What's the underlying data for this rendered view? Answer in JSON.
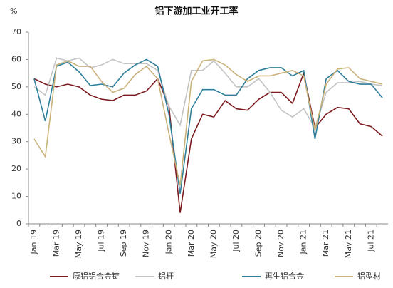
{
  "chart_data": {
    "type": "line",
    "title": "铝下游加工业开工率",
    "y_label": "%",
    "categories": [
      "Jan 19",
      null,
      "Mar 19",
      null,
      "May 19",
      null,
      "Jul 19",
      null,
      "Sep 19",
      null,
      "Nov 19",
      null,
      "Jan 20",
      null,
      "Mar 20",
      null,
      "May 20",
      null,
      "Jul 20",
      null,
      "Sep 20",
      null,
      "Nov 20",
      null,
      "Jan 21",
      null,
      "Mar 21",
      null,
      "May 21",
      null,
      "Jul 21",
      null
    ],
    "series": [
      {
        "name": "原铝铝合金锭",
        "color": "#7b1a1f",
        "values": [
          53,
          51,
          50,
          51,
          50,
          47,
          45.5,
          45,
          47,
          47,
          48.5,
          53,
          43,
          4,
          31,
          40,
          39,
          45,
          42,
          41.5,
          45.5,
          48,
          48,
          44,
          55,
          35,
          40,
          42.5,
          42,
          36.5,
          35.5,
          32
        ]
      },
      {
        "name": "铝杆",
        "color": "#c4c4c4",
        "values": [
          50,
          47,
          60.5,
          59.5,
          60.5,
          57,
          58,
          60,
          58.5,
          58.5,
          58.5,
          56,
          43,
          36,
          56,
          56,
          59.5,
          55,
          50,
          50,
          53,
          48,
          41.5,
          39,
          42,
          35,
          48,
          51.5,
          51.5,
          52,
          51,
          50.5
        ]
      },
      {
        "name": "再生铝合金",
        "color": "#2f7f9a",
        "values": [
          53,
          37.5,
          57.5,
          59,
          55.5,
          50.5,
          51,
          50,
          55,
          58,
          60,
          57.5,
          40,
          11,
          42,
          49,
          49,
          47,
          47,
          53,
          56,
          57,
          57,
          54,
          56,
          31,
          53,
          56,
          52,
          51,
          51,
          46
        ]
      },
      {
        "name": "铝型材",
        "color": "#c9b27c",
        "values": [
          31,
          24.5,
          58,
          59.5,
          57.5,
          57.5,
          52,
          48,
          49.5,
          54.5,
          57.5,
          53,
          33,
          14,
          52,
          59.5,
          60,
          58,
          54.5,
          52,
          54,
          54,
          55,
          56,
          54,
          34,
          51,
          56.5,
          57,
          53,
          52,
          51
        ]
      }
    ],
    "ylim": [
      0,
      70
    ],
    "yticks": [
      0,
      10,
      20,
      30,
      40,
      50,
      60,
      70
    ],
    "grid": false,
    "legend": "bottom"
  }
}
